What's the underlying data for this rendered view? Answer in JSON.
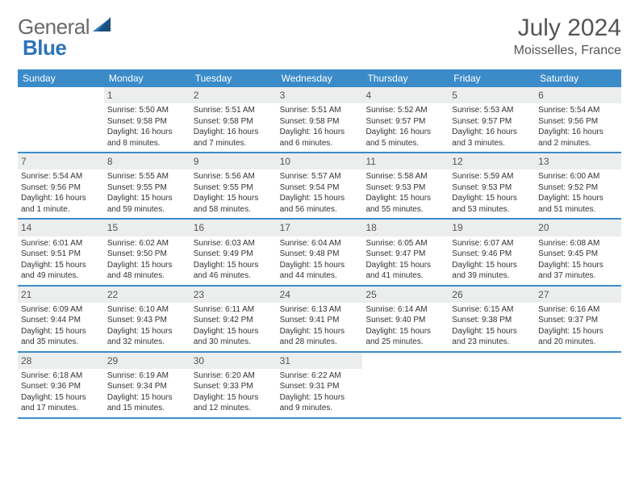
{
  "logo": {
    "text1": "General",
    "text2": "Blue"
  },
  "header": {
    "month": "July 2024",
    "location": "Moisselles, France"
  },
  "dow": [
    "Sunday",
    "Monday",
    "Tuesday",
    "Wednesday",
    "Thursday",
    "Friday",
    "Saturday"
  ],
  "colors": {
    "header_bg": "#3b8bc9",
    "daynum_bg": "#eceded",
    "border": "#3b8bc9",
    "text": "#333333",
    "logo_gray": "#6a6a6a",
    "logo_blue": "#2c74b8"
  },
  "weeks": [
    [
      {
        "num": "",
        "lines": []
      },
      {
        "num": "1",
        "lines": [
          "Sunrise: 5:50 AM",
          "Sunset: 9:58 PM",
          "Daylight: 16 hours",
          "and 8 minutes."
        ]
      },
      {
        "num": "2",
        "lines": [
          "Sunrise: 5:51 AM",
          "Sunset: 9:58 PM",
          "Daylight: 16 hours",
          "and 7 minutes."
        ]
      },
      {
        "num": "3",
        "lines": [
          "Sunrise: 5:51 AM",
          "Sunset: 9:58 PM",
          "Daylight: 16 hours",
          "and 6 minutes."
        ]
      },
      {
        "num": "4",
        "lines": [
          "Sunrise: 5:52 AM",
          "Sunset: 9:57 PM",
          "Daylight: 16 hours",
          "and 5 minutes."
        ]
      },
      {
        "num": "5",
        "lines": [
          "Sunrise: 5:53 AM",
          "Sunset: 9:57 PM",
          "Daylight: 16 hours",
          "and 3 minutes."
        ]
      },
      {
        "num": "6",
        "lines": [
          "Sunrise: 5:54 AM",
          "Sunset: 9:56 PM",
          "Daylight: 16 hours",
          "and 2 minutes."
        ]
      }
    ],
    [
      {
        "num": "7",
        "lines": [
          "Sunrise: 5:54 AM",
          "Sunset: 9:56 PM",
          "Daylight: 16 hours",
          "and 1 minute."
        ]
      },
      {
        "num": "8",
        "lines": [
          "Sunrise: 5:55 AM",
          "Sunset: 9:55 PM",
          "Daylight: 15 hours",
          "and 59 minutes."
        ]
      },
      {
        "num": "9",
        "lines": [
          "Sunrise: 5:56 AM",
          "Sunset: 9:55 PM",
          "Daylight: 15 hours",
          "and 58 minutes."
        ]
      },
      {
        "num": "10",
        "lines": [
          "Sunrise: 5:57 AM",
          "Sunset: 9:54 PM",
          "Daylight: 15 hours",
          "and 56 minutes."
        ]
      },
      {
        "num": "11",
        "lines": [
          "Sunrise: 5:58 AM",
          "Sunset: 9:53 PM",
          "Daylight: 15 hours",
          "and 55 minutes."
        ]
      },
      {
        "num": "12",
        "lines": [
          "Sunrise: 5:59 AM",
          "Sunset: 9:53 PM",
          "Daylight: 15 hours",
          "and 53 minutes."
        ]
      },
      {
        "num": "13",
        "lines": [
          "Sunrise: 6:00 AM",
          "Sunset: 9:52 PM",
          "Daylight: 15 hours",
          "and 51 minutes."
        ]
      }
    ],
    [
      {
        "num": "14",
        "lines": [
          "Sunrise: 6:01 AM",
          "Sunset: 9:51 PM",
          "Daylight: 15 hours",
          "and 49 minutes."
        ]
      },
      {
        "num": "15",
        "lines": [
          "Sunrise: 6:02 AM",
          "Sunset: 9:50 PM",
          "Daylight: 15 hours",
          "and 48 minutes."
        ]
      },
      {
        "num": "16",
        "lines": [
          "Sunrise: 6:03 AM",
          "Sunset: 9:49 PM",
          "Daylight: 15 hours",
          "and 46 minutes."
        ]
      },
      {
        "num": "17",
        "lines": [
          "Sunrise: 6:04 AM",
          "Sunset: 9:48 PM",
          "Daylight: 15 hours",
          "and 44 minutes."
        ]
      },
      {
        "num": "18",
        "lines": [
          "Sunrise: 6:05 AM",
          "Sunset: 9:47 PM",
          "Daylight: 15 hours",
          "and 41 minutes."
        ]
      },
      {
        "num": "19",
        "lines": [
          "Sunrise: 6:07 AM",
          "Sunset: 9:46 PM",
          "Daylight: 15 hours",
          "and 39 minutes."
        ]
      },
      {
        "num": "20",
        "lines": [
          "Sunrise: 6:08 AM",
          "Sunset: 9:45 PM",
          "Daylight: 15 hours",
          "and 37 minutes."
        ]
      }
    ],
    [
      {
        "num": "21",
        "lines": [
          "Sunrise: 6:09 AM",
          "Sunset: 9:44 PM",
          "Daylight: 15 hours",
          "and 35 minutes."
        ]
      },
      {
        "num": "22",
        "lines": [
          "Sunrise: 6:10 AM",
          "Sunset: 9:43 PM",
          "Daylight: 15 hours",
          "and 32 minutes."
        ]
      },
      {
        "num": "23",
        "lines": [
          "Sunrise: 6:11 AM",
          "Sunset: 9:42 PM",
          "Daylight: 15 hours",
          "and 30 minutes."
        ]
      },
      {
        "num": "24",
        "lines": [
          "Sunrise: 6:13 AM",
          "Sunset: 9:41 PM",
          "Daylight: 15 hours",
          "and 28 minutes."
        ]
      },
      {
        "num": "25",
        "lines": [
          "Sunrise: 6:14 AM",
          "Sunset: 9:40 PM",
          "Daylight: 15 hours",
          "and 25 minutes."
        ]
      },
      {
        "num": "26",
        "lines": [
          "Sunrise: 6:15 AM",
          "Sunset: 9:38 PM",
          "Daylight: 15 hours",
          "and 23 minutes."
        ]
      },
      {
        "num": "27",
        "lines": [
          "Sunrise: 6:16 AM",
          "Sunset: 9:37 PM",
          "Daylight: 15 hours",
          "and 20 minutes."
        ]
      }
    ],
    [
      {
        "num": "28",
        "lines": [
          "Sunrise: 6:18 AM",
          "Sunset: 9:36 PM",
          "Daylight: 15 hours",
          "and 17 minutes."
        ]
      },
      {
        "num": "29",
        "lines": [
          "Sunrise: 6:19 AM",
          "Sunset: 9:34 PM",
          "Daylight: 15 hours",
          "and 15 minutes."
        ]
      },
      {
        "num": "30",
        "lines": [
          "Sunrise: 6:20 AM",
          "Sunset: 9:33 PM",
          "Daylight: 15 hours",
          "and 12 minutes."
        ]
      },
      {
        "num": "31",
        "lines": [
          "Sunrise: 6:22 AM",
          "Sunset: 9:31 PM",
          "Daylight: 15 hours",
          "and 9 minutes."
        ]
      },
      {
        "num": "",
        "lines": []
      },
      {
        "num": "",
        "lines": []
      },
      {
        "num": "",
        "lines": []
      }
    ]
  ]
}
